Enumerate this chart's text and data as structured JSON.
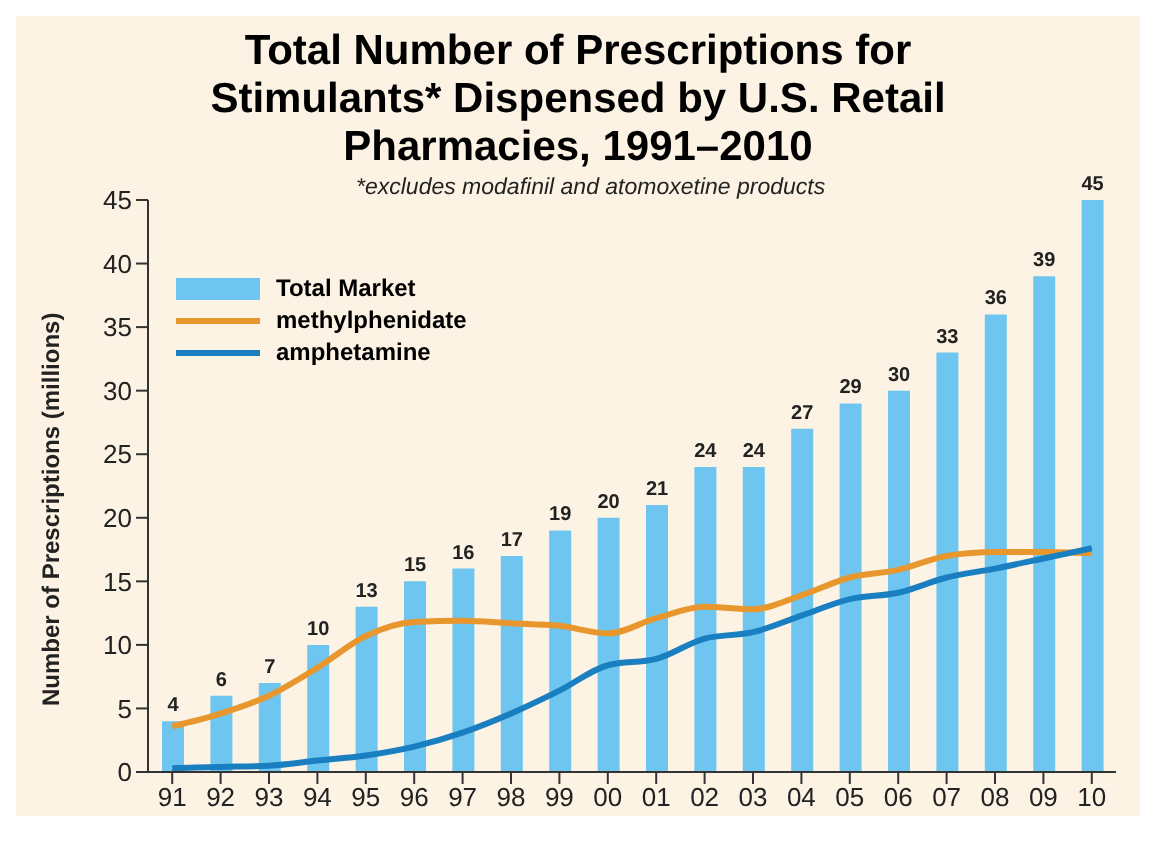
{
  "chart_data": {
    "type": "bar",
    "title": "Total Number of Prescriptions for Stimulants* Dispensed by U.S. Retail Pharmacies, 1991–2010",
    "subtitle": "*excludes modafinil and atomoxetine products",
    "ylabel": "Number of Prescriptions (millions)",
    "categories": [
      "91",
      "92",
      "93",
      "94",
      "95",
      "96",
      "97",
      "98",
      "99",
      "00",
      "01",
      "02",
      "03",
      "04",
      "05",
      "06",
      "07",
      "08",
      "09",
      "10"
    ],
    "series": [
      {
        "name": "Total Market",
        "color": "#6ec6f0",
        "values": [
          4,
          6,
          7,
          10,
          13,
          15,
          16,
          17,
          19,
          20,
          21,
          24,
          24,
          27,
          29,
          30,
          33,
          36,
          39,
          45
        ],
        "data_labels": true
      },
      {
        "name": "methylphenidate",
        "type": "line",
        "color": "#e8962e",
        "values": [
          3.6,
          4.6,
          6.0,
          8.2,
          10.7,
          11.8,
          11.9,
          11.7,
          11.5,
          10.9,
          12.1,
          13.0,
          12.8,
          13.9,
          15.3,
          15.9,
          17.0,
          17.3,
          17.3,
          17.2
        ]
      },
      {
        "name": "amphetamine",
        "type": "line",
        "color": "#1a7fc1",
        "values": [
          0.3,
          0.4,
          0.5,
          0.9,
          1.3,
          2.0,
          3.1,
          4.6,
          6.4,
          8.4,
          8.9,
          10.5,
          11.0,
          12.3,
          13.6,
          14.1,
          15.3,
          16.0,
          16.8,
          17.6
        ]
      }
    ],
    "ylim": [
      0,
      45
    ],
    "yticks": [
      0,
      5,
      10,
      15,
      20,
      25,
      30,
      35,
      40,
      45
    ],
    "grid": false,
    "legend": "top left",
    "marker": "none",
    "line_style": "solid"
  }
}
